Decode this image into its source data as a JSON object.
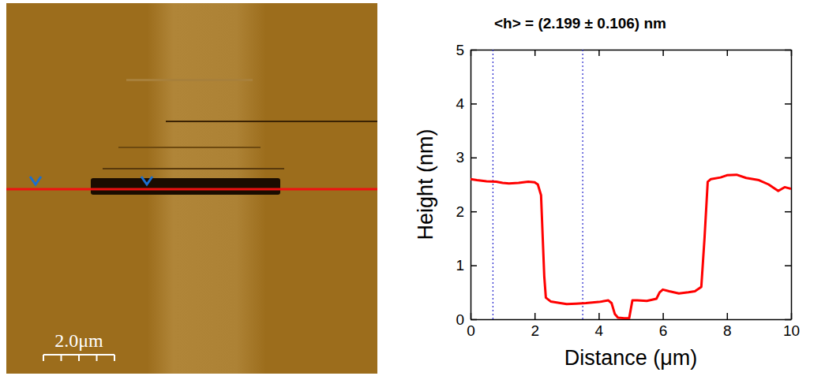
{
  "afm_image": {
    "scale_bar_label": "2.0μm"
  },
  "chart_data": {
    "type": "line",
    "title": "<h> = (2.199 ± 0.106) nm",
    "x_label": "Distance (μm)",
    "y_label": "Height (nm)",
    "x": [
      0,
      0.2,
      0.5,
      0.8,
      1.0,
      1.2,
      1.5,
      1.8,
      2.0,
      2.1,
      2.2,
      2.3,
      2.35,
      2.5,
      2.8,
      3.0,
      3.3,
      3.6,
      4.0,
      4.3,
      4.4,
      4.5,
      4.6,
      4.8,
      4.95,
      5.05,
      5.2,
      5.5,
      5.8,
      5.9,
      6.0,
      6.2,
      6.5,
      6.8,
      7.0,
      7.2,
      7.3,
      7.4,
      7.5,
      7.8,
      8.0,
      8.3,
      8.6,
      9.0,
      9.3,
      9.6,
      9.8,
      10
    ],
    "values": [
      2.6,
      2.58,
      2.56,
      2.55,
      2.53,
      2.52,
      2.53,
      2.55,
      2.54,
      2.5,
      2.3,
      0.8,
      0.4,
      0.33,
      0.3,
      0.28,
      0.29,
      0.3,
      0.32,
      0.35,
      0.3,
      0.1,
      0.03,
      0.02,
      0.02,
      0.35,
      0.35,
      0.34,
      0.38,
      0.5,
      0.55,
      0.52,
      0.48,
      0.5,
      0.52,
      0.6,
      1.5,
      2.55,
      2.6,
      2.63,
      2.67,
      2.68,
      2.62,
      2.58,
      2.5,
      2.38,
      2.45,
      2.42
    ],
    "color": "#ff0000",
    "cursor_x": [
      0.7,
      3.5
    ],
    "cursor_color": "#2222cc",
    "line_style": "dotted",
    "xlim": [
      0,
      10
    ],
    "xticks": [
      0,
      2,
      4,
      6,
      8,
      10
    ],
    "ylim": [
      0,
      5
    ],
    "yticks": [
      0,
      1,
      2,
      3,
      4,
      5
    ]
  }
}
